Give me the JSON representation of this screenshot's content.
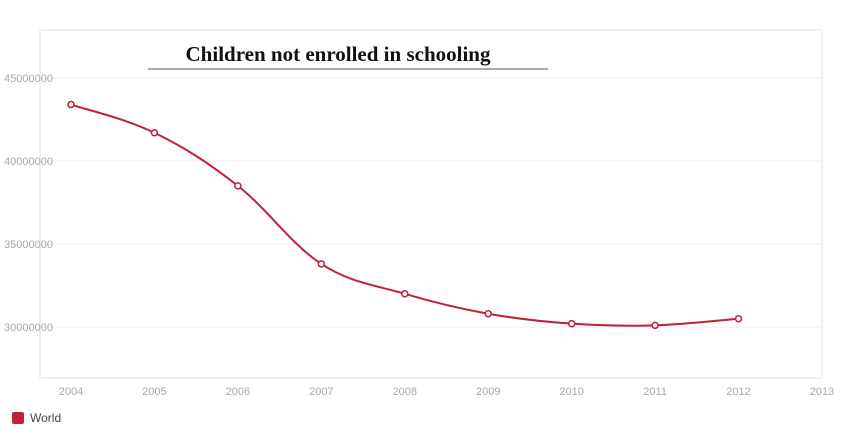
{
  "colors": {
    "series": "#c0203c",
    "grid": "#ececec",
    "frame": "#e2e2e2",
    "tick_text": "#a8a8a8"
  },
  "chart_data": {
    "type": "line",
    "title": "Children not enrolled in schooling",
    "xlabel": "",
    "ylabel": "",
    "x": [
      2004,
      2005,
      2006,
      2007,
      2008,
      2009,
      2010,
      2011,
      2012
    ],
    "x_ticks": [
      "2004",
      "2005",
      "2006",
      "2007",
      "2008",
      "2009",
      "2010",
      "2011",
      "2012",
      "2013"
    ],
    "xlim": [
      2004,
      2013
    ],
    "y_ticks": [
      "45000000",
      "40000000",
      "35000000",
      "30000000"
    ],
    "ylim": [
      27000000,
      48000000
    ],
    "grid": true,
    "legend": "bottom-left",
    "series": [
      {
        "name": "World",
        "values": [
          43400000,
          41700000,
          38500000,
          33800000,
          32000000,
          30800000,
          30200000,
          30100000,
          30500000
        ]
      }
    ]
  }
}
